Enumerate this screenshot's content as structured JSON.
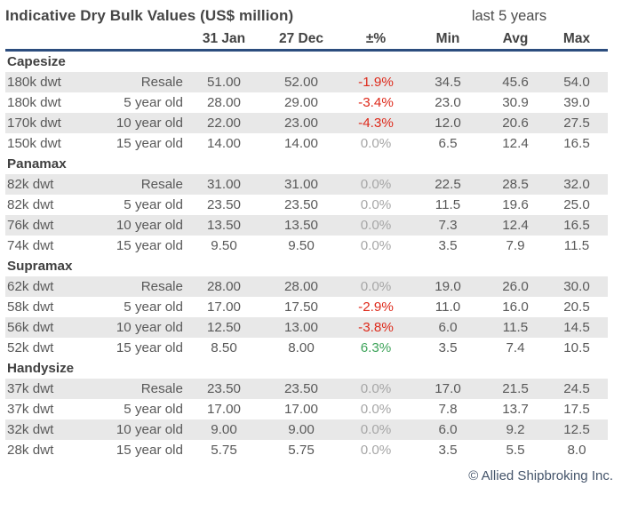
{
  "header": {
    "title": "Indicative Dry Bulk Values (US$ million)",
    "period_label": "last 5 years",
    "columns": {
      "current": "31 Jan",
      "previous": "27 Dec",
      "change": "±%",
      "min": "Min",
      "avg": "Avg",
      "max": "Max"
    }
  },
  "sections": [
    {
      "name": "Capesize",
      "rows": [
        {
          "size": "180k dwt",
          "age": "Resale",
          "current": "51.00",
          "previous": "52.00",
          "change": "-1.9%",
          "change_color": "red",
          "min": "34.5",
          "avg": "45.6",
          "max": "54.0"
        },
        {
          "size": "180k dwt",
          "age": "5 year old",
          "current": "28.00",
          "previous": "29.00",
          "change": "-3.4%",
          "change_color": "red",
          "min": "23.0",
          "avg": "30.9",
          "max": "39.0"
        },
        {
          "size": "170k dwt",
          "age": "10 year old",
          "current": "22.00",
          "previous": "23.00",
          "change": "-4.3%",
          "change_color": "red",
          "min": "12.0",
          "avg": "20.6",
          "max": "27.5"
        },
        {
          "size": "150k dwt",
          "age": "15 year old",
          "current": "14.00",
          "previous": "14.00",
          "change": "0.0%",
          "change_color": "gray",
          "min": "6.5",
          "avg": "12.4",
          "max": "16.5"
        }
      ]
    },
    {
      "name": "Panamax",
      "rows": [
        {
          "size": "82k dwt",
          "age": "Resale",
          "current": "31.00",
          "previous": "31.00",
          "change": "0.0%",
          "change_color": "gray",
          "min": "22.5",
          "avg": "28.5",
          "max": "32.0"
        },
        {
          "size": "82k dwt",
          "age": "5 year old",
          "current": "23.50",
          "previous": "23.50",
          "change": "0.0%",
          "change_color": "gray",
          "min": "11.5",
          "avg": "19.6",
          "max": "25.0"
        },
        {
          "size": "76k dwt",
          "age": "10 year old",
          "current": "13.50",
          "previous": "13.50",
          "change": "0.0%",
          "change_color": "gray",
          "min": "7.3",
          "avg": "12.4",
          "max": "16.5"
        },
        {
          "size": "74k dwt",
          "age": "15 year old",
          "current": "9.50",
          "previous": "9.50",
          "change": "0.0%",
          "change_color": "gray",
          "min": "3.5",
          "avg": "7.9",
          "max": "11.5"
        }
      ]
    },
    {
      "name": "Supramax",
      "rows": [
        {
          "size": "62k dwt",
          "age": "Resale",
          "current": "28.00",
          "previous": "28.00",
          "change": "0.0%",
          "change_color": "gray",
          "min": "19.0",
          "avg": "26.0",
          "max": "30.0"
        },
        {
          "size": "58k dwt",
          "age": "5 year old",
          "current": "17.00",
          "previous": "17.50",
          "change": "-2.9%",
          "change_color": "red",
          "min": "11.0",
          "avg": "16.0",
          "max": "20.5"
        },
        {
          "size": "56k dwt",
          "age": "10 year old",
          "current": "12.50",
          "previous": "13.00",
          "change": "-3.8%",
          "change_color": "red",
          "min": "6.0",
          "avg": "11.5",
          "max": "14.5"
        },
        {
          "size": "52k dwt",
          "age": "15 year old",
          "current": "8.50",
          "previous": "8.00",
          "change": "6.3%",
          "change_color": "green",
          "min": "3.5",
          "avg": "7.4",
          "max": "10.5"
        }
      ]
    },
    {
      "name": "Handysize",
      "rows": [
        {
          "size": "37k dwt",
          "age": "Resale",
          "current": "23.50",
          "previous": "23.50",
          "change": "0.0%",
          "change_color": "gray",
          "min": "17.0",
          "avg": "21.5",
          "max": "24.5"
        },
        {
          "size": "37k dwt",
          "age": "5 year old",
          "current": "17.00",
          "previous": "17.00",
          "change": "0.0%",
          "change_color": "gray",
          "min": "7.8",
          "avg": "13.7",
          "max": "17.5"
        },
        {
          "size": "32k dwt",
          "age": "10 year old",
          "current": "9.00",
          "previous": "9.00",
          "change": "0.0%",
          "change_color": "gray",
          "min": "6.0",
          "avg": "9.2",
          "max": "12.5"
        },
        {
          "size": "28k dwt",
          "age": "15 year old",
          "current": "5.75",
          "previous": "5.75",
          "change": "0.0%",
          "change_color": "gray",
          "min": "3.5",
          "avg": "5.5",
          "max": "8.0"
        }
      ]
    }
  ],
  "footer": {
    "copyright": "© Allied Shipbroking Inc."
  },
  "colors": {
    "accent_line": "#2c4d7e",
    "negative": "#de2a1b",
    "positive": "#3fa45b",
    "neutral": "#a6a6a6",
    "stripe": "#e8e8e8",
    "text": "#595959",
    "footer": "#44546a"
  }
}
